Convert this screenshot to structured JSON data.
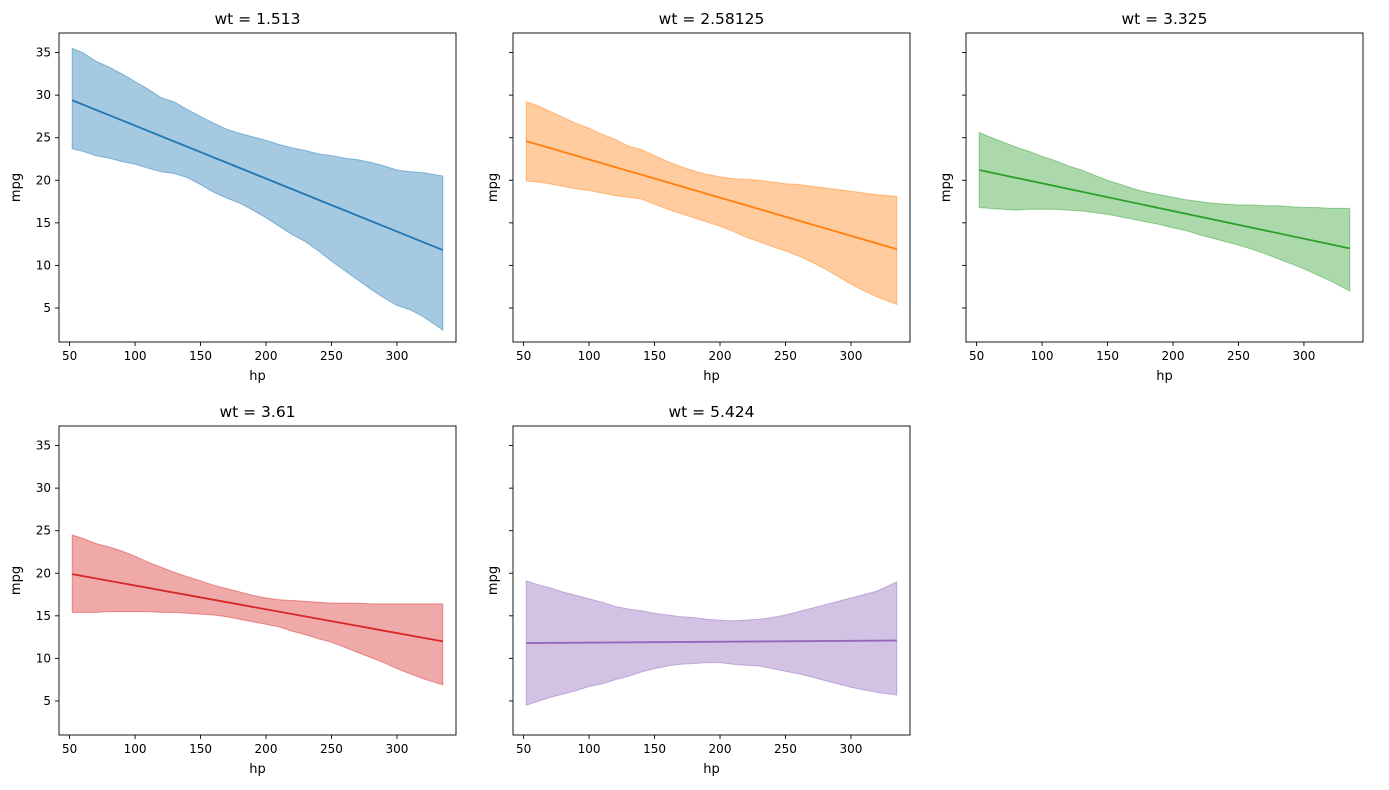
{
  "chart_data": [
    {
      "type": "line",
      "title": "wt = 1.513",
      "xlabel": "hp",
      "ylabel": "mpg",
      "color": "#1f77b4",
      "xlim": [
        41.9,
        345.1
      ],
      "ylim": [
        1.0,
        37.3
      ],
      "xticks": [
        50,
        100,
        150,
        200,
        250,
        300
      ],
      "yticks": [
        5,
        10,
        15,
        20,
        25,
        30,
        35
      ],
      "line": {
        "x": [
          52,
          335
        ],
        "y": [
          29.4,
          11.8
        ]
      },
      "band": {
        "x": [
          52,
          60,
          70,
          80,
          90,
          100,
          110,
          120,
          130,
          140,
          150,
          160,
          170,
          180,
          190,
          200,
          210,
          220,
          230,
          240,
          250,
          260,
          270,
          280,
          290,
          300,
          310,
          320,
          335
        ],
        "upper": [
          35.5,
          35.0,
          34.0,
          33.3,
          32.5,
          31.6,
          30.7,
          29.7,
          29.2,
          28.3,
          27.5,
          26.7,
          26.0,
          25.5,
          25.1,
          24.7,
          24.2,
          23.8,
          23.5,
          23.1,
          22.9,
          22.6,
          22.4,
          22.1,
          21.7,
          21.2,
          21.0,
          20.9,
          20.5
        ],
        "lower": [
          23.7,
          23.4,
          22.9,
          22.6,
          22.2,
          21.9,
          21.4,
          21.0,
          20.8,
          20.3,
          19.5,
          18.6,
          17.9,
          17.3,
          16.5,
          15.6,
          14.6,
          13.6,
          12.8,
          11.7,
          10.5,
          9.4,
          8.3,
          7.2,
          6.2,
          5.3,
          4.8,
          4.0,
          2.4
        ]
      }
    },
    {
      "type": "line",
      "title": "wt = 2.58125",
      "xlabel": "hp",
      "ylabel": "mpg",
      "color": "#ff7f0e",
      "xlim": [
        41.9,
        345.1
      ],
      "ylim": [
        1.0,
        37.3
      ],
      "xticks": [
        50,
        100,
        150,
        200,
        250,
        300
      ],
      "yticks": [
        5,
        10,
        15,
        20,
        25,
        30,
        35
      ],
      "line": {
        "x": [
          52,
          335
        ],
        "y": [
          24.6,
          11.9
        ]
      },
      "band": {
        "x": [
          52,
          60,
          70,
          80,
          90,
          100,
          110,
          120,
          130,
          140,
          150,
          160,
          170,
          180,
          190,
          200,
          210,
          220,
          230,
          240,
          250,
          260,
          270,
          280,
          290,
          300,
          310,
          320,
          335
        ],
        "upper": [
          29.2,
          28.8,
          28.1,
          27.4,
          26.7,
          26.1,
          25.4,
          24.8,
          24.0,
          23.6,
          22.9,
          22.2,
          21.6,
          21.1,
          20.7,
          20.4,
          20.2,
          20.1,
          20.0,
          19.8,
          19.6,
          19.5,
          19.3,
          19.1,
          18.9,
          18.7,
          18.5,
          18.3,
          18.1
        ],
        "lower": [
          19.9,
          19.8,
          19.6,
          19.3,
          19.0,
          18.8,
          18.5,
          18.2,
          18.0,
          17.8,
          17.2,
          16.6,
          16.1,
          15.6,
          15.1,
          14.6,
          14.0,
          13.3,
          12.8,
          12.2,
          11.7,
          11.1,
          10.4,
          9.6,
          8.7,
          7.8,
          7.0,
          6.3,
          5.4
        ]
      }
    },
    {
      "type": "line",
      "title": "wt = 3.325",
      "xlabel": "hp",
      "ylabel": "mpg",
      "color": "#2ca02c",
      "xlim": [
        41.9,
        345.1
      ],
      "ylim": [
        1.0,
        37.3
      ],
      "xticks": [
        50,
        100,
        150,
        200,
        250,
        300
      ],
      "yticks": [
        5,
        10,
        15,
        20,
        25,
        30,
        35
      ],
      "line": {
        "x": [
          52,
          335
        ],
        "y": [
          21.2,
          12.0
        ]
      },
      "band": {
        "x": [
          52,
          60,
          70,
          80,
          90,
          100,
          110,
          120,
          130,
          140,
          150,
          160,
          170,
          180,
          190,
          200,
          210,
          220,
          230,
          240,
          250,
          260,
          270,
          280,
          290,
          300,
          310,
          320,
          335
        ],
        "upper": [
          25.6,
          25.1,
          24.5,
          23.9,
          23.4,
          22.8,
          22.3,
          21.7,
          21.2,
          20.6,
          20.0,
          19.5,
          19.0,
          18.6,
          18.3,
          18.0,
          17.7,
          17.5,
          17.3,
          17.2,
          17.1,
          17.1,
          17.0,
          17.0,
          16.9,
          16.8,
          16.8,
          16.7,
          16.7
        ],
        "lower": [
          16.8,
          16.7,
          16.6,
          16.5,
          16.6,
          16.6,
          16.6,
          16.5,
          16.4,
          16.2,
          16.0,
          15.7,
          15.4,
          15.1,
          14.8,
          14.4,
          14.1,
          13.6,
          13.2,
          12.8,
          12.4,
          11.9,
          11.4,
          10.8,
          10.2,
          9.6,
          8.9,
          8.2,
          7.0
        ]
      }
    },
    {
      "type": "line",
      "title": "wt = 3.61",
      "xlabel": "hp",
      "ylabel": "mpg",
      "color": "#d62728",
      "xlim": [
        41.9,
        345.1
      ],
      "ylim": [
        1.0,
        37.3
      ],
      "xticks": [
        50,
        100,
        150,
        200,
        250,
        300
      ],
      "yticks": [
        5,
        10,
        15,
        20,
        25,
        30,
        35
      ],
      "line": {
        "x": [
          52,
          335
        ],
        "y": [
          19.9,
          12.0
        ]
      },
      "band": {
        "x": [
          52,
          60,
          70,
          80,
          90,
          100,
          110,
          120,
          130,
          140,
          150,
          160,
          170,
          180,
          190,
          200,
          210,
          220,
          230,
          240,
          250,
          260,
          270,
          280,
          290,
          300,
          310,
          320,
          335
        ],
        "upper": [
          24.5,
          24.1,
          23.5,
          23.1,
          22.6,
          22.0,
          21.3,
          20.7,
          20.1,
          19.6,
          19.1,
          18.6,
          18.2,
          17.8,
          17.4,
          17.1,
          16.9,
          16.8,
          16.7,
          16.6,
          16.5,
          16.5,
          16.5,
          16.4,
          16.4,
          16.4,
          16.4,
          16.4,
          16.4
        ],
        "lower": [
          15.4,
          15.4,
          15.4,
          15.5,
          15.5,
          15.5,
          15.5,
          15.4,
          15.4,
          15.3,
          15.2,
          15.1,
          14.9,
          14.6,
          14.3,
          14.0,
          13.7,
          13.2,
          12.8,
          12.3,
          11.9,
          11.3,
          10.7,
          10.1,
          9.5,
          8.8,
          8.2,
          7.6,
          6.9
        ]
      }
    },
    {
      "type": "line",
      "title": "wt = 5.424",
      "xlabel": "hp",
      "ylabel": "mpg",
      "color": "#9467bd",
      "xlim": [
        41.9,
        345.1
      ],
      "ylim": [
        1.0,
        37.3
      ],
      "xticks": [
        50,
        100,
        150,
        200,
        250,
        300
      ],
      "yticks": [
        5,
        10,
        15,
        20,
        25,
        30,
        35
      ],
      "line": {
        "x": [
          52,
          335
        ],
        "y": [
          11.8,
          12.1
        ]
      },
      "band": {
        "x": [
          52,
          60,
          70,
          80,
          90,
          100,
          110,
          120,
          130,
          140,
          150,
          160,
          170,
          180,
          190,
          200,
          210,
          220,
          230,
          240,
          250,
          260,
          270,
          280,
          290,
          300,
          310,
          320,
          335
        ],
        "upper": [
          19.1,
          18.7,
          18.3,
          17.8,
          17.4,
          17.0,
          16.6,
          16.1,
          15.8,
          15.6,
          15.3,
          15.1,
          14.9,
          14.8,
          14.6,
          14.5,
          14.4,
          14.5,
          14.6,
          14.8,
          15.1,
          15.5,
          15.9,
          16.3,
          16.7,
          17.1,
          17.5,
          17.9,
          19.0
        ],
        "lower": [
          4.5,
          4.9,
          5.4,
          5.8,
          6.2,
          6.7,
          7.0,
          7.5,
          7.9,
          8.4,
          8.8,
          9.1,
          9.3,
          9.4,
          9.5,
          9.5,
          9.3,
          9.2,
          9.1,
          8.8,
          8.5,
          8.2,
          7.8,
          7.4,
          7.0,
          6.6,
          6.3,
          6.0,
          5.7
        ]
      }
    }
  ]
}
